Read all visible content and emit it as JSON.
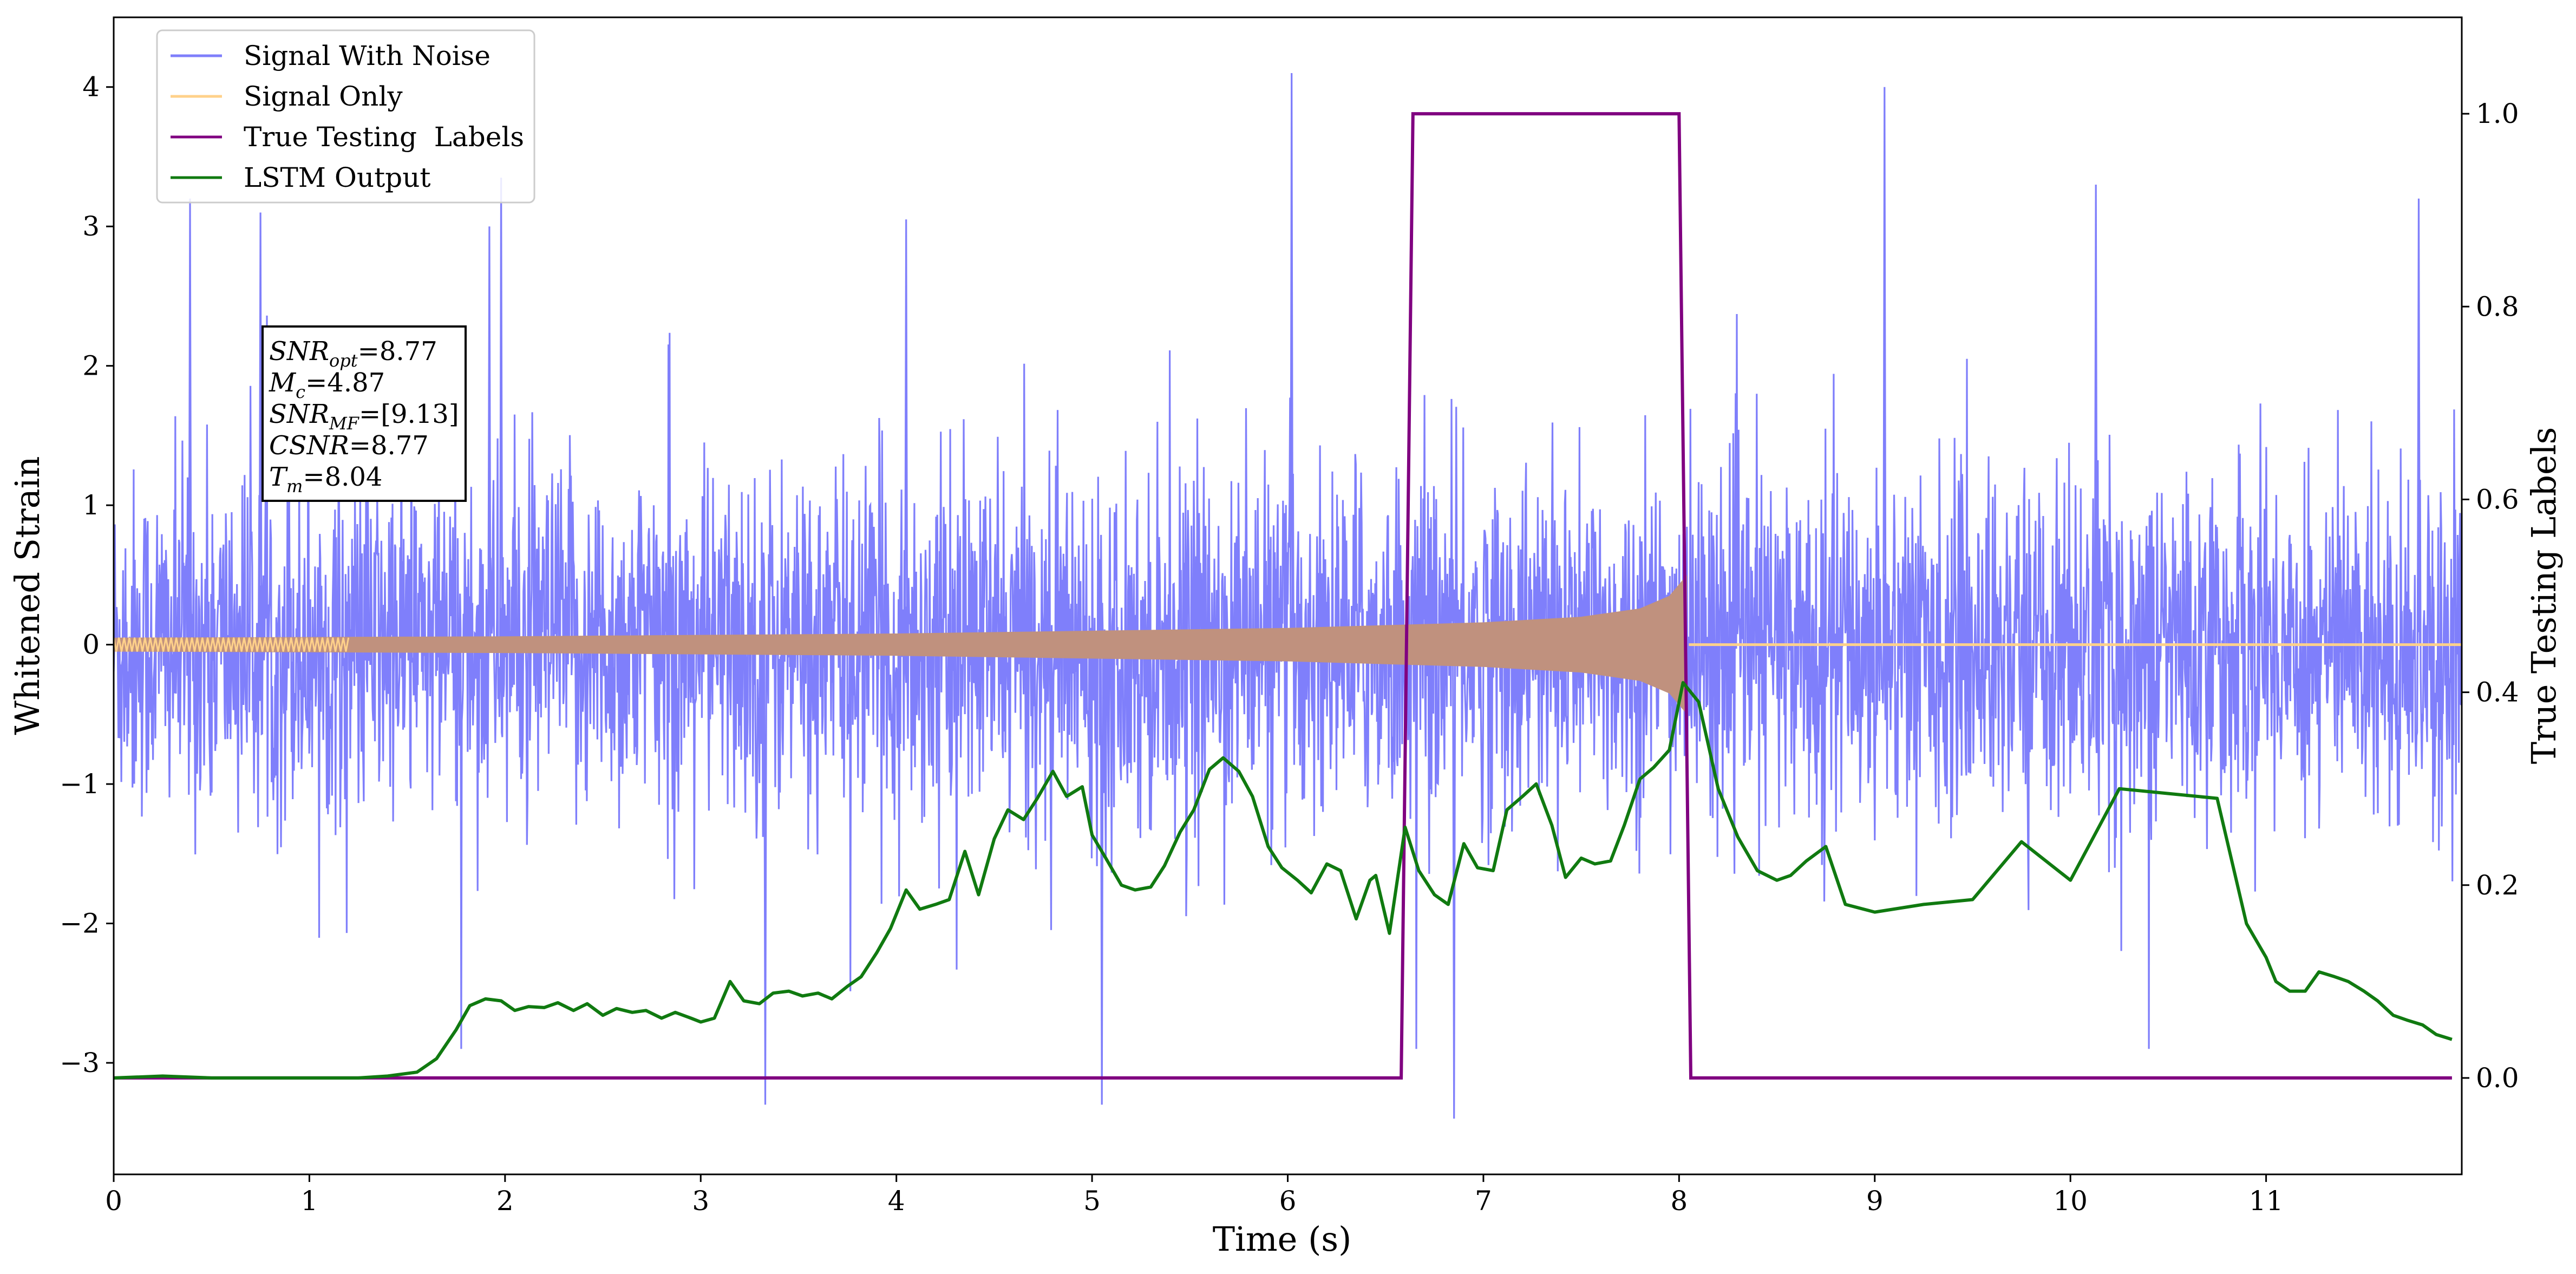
{
  "chart_data": {
    "type": "line",
    "xlabel": "Time (s)",
    "ylabel": "Whitened Strain",
    "y2label": "True Testing Labels",
    "xlim": [
      0,
      12
    ],
    "ylim": [
      -3.8,
      4.5
    ],
    "y2lim": [
      -0.1,
      1.1
    ],
    "xticks": [
      "0",
      "1",
      "2",
      "3",
      "4",
      "5",
      "6",
      "7",
      "8",
      "9",
      "10",
      "11"
    ],
    "yticks": [
      "−3",
      "−2",
      "−1",
      "0",
      "1",
      "2",
      "3",
      "4"
    ],
    "y2ticks": [
      "0.0",
      "0.2",
      "0.4",
      "0.6",
      "0.8",
      "1.0"
    ],
    "legend": {
      "position": "upper-left",
      "entries": [
        {
          "label": "Signal With Noise",
          "color": "#7f7ffb"
        },
        {
          "label": "Signal Only",
          "color": "#ffd18a"
        },
        {
          "label": "True Testing  Labels",
          "color": "#800080"
        },
        {
          "label": "LSTM Output",
          "color": "#107a10"
        }
      ]
    },
    "annotation": {
      "snr_opt": "=8.77",
      "mc": "=4.87",
      "snr_mf": "=[9.13]",
      "csnr": "=8.77",
      "tm": "=8.04"
    },
    "series": [
      {
        "name": "Signal With Noise",
        "axis": "left",
        "color": "#7f7ffb",
        "envelope_typical": [
          -1.3,
          1.3
        ],
        "extremes": [
          {
            "x": 0.39,
            "y": 3.2
          },
          {
            "x": 0.75,
            "y": 3.1
          },
          {
            "x": 1.92,
            "y": 3.0
          },
          {
            "x": 1.98,
            "y": 3.35
          },
          {
            "x": 3.33,
            "y": -3.3
          },
          {
            "x": 4.05,
            "y": 3.05
          },
          {
            "x": 5.05,
            "y": -3.3
          },
          {
            "x": 6.02,
            "y": 4.1
          },
          {
            "x": 6.85,
            "y": -3.4
          },
          {
            "x": 9.05,
            "y": 4.0
          },
          {
            "x": 10.13,
            "y": 3.3
          },
          {
            "x": 11.78,
            "y": 3.2
          }
        ]
      },
      {
        "name": "Signal Only",
        "axis": "left",
        "color": "#ffd18a",
        "envelope": [
          {
            "x": 0.0,
            "y": 0.05
          },
          {
            "x": 1.0,
            "y": 0.055
          },
          {
            "x": 2.0,
            "y": 0.06
          },
          {
            "x": 3.0,
            "y": 0.07
          },
          {
            "x": 4.0,
            "y": 0.08
          },
          {
            "x": 5.0,
            "y": 0.1
          },
          {
            "x": 6.0,
            "y": 0.12
          },
          {
            "x": 6.5,
            "y": 0.14
          },
          {
            "x": 7.0,
            "y": 0.16
          },
          {
            "x": 7.5,
            "y": 0.2
          },
          {
            "x": 7.8,
            "y": 0.26
          },
          {
            "x": 7.95,
            "y": 0.35
          },
          {
            "x": 8.04,
            "y": 0.5
          },
          {
            "x": 8.05,
            "y": 0.0
          },
          {
            "x": 12.0,
            "y": 0.0
          }
        ]
      },
      {
        "name": "True Testing  Labels",
        "axis": "right",
        "color": "#800080",
        "x": [
          0.0,
          6.58,
          6.64,
          8.0,
          8.06,
          11.95
        ],
        "y": [
          0,
          0,
          1,
          1,
          0,
          0
        ]
      },
      {
        "name": "LSTM Output",
        "axis": "right",
        "color": "#107a10",
        "x": [
          0.0,
          0.25,
          0.5,
          0.75,
          1.0,
          1.25,
          1.4,
          1.55,
          1.65,
          1.75,
          1.82,
          1.9,
          1.98,
          2.05,
          2.12,
          2.2,
          2.27,
          2.35,
          2.42,
          2.5,
          2.57,
          2.65,
          2.72,
          2.8,
          2.87,
          2.95,
          3.0,
          3.07,
          3.15,
          3.22,
          3.3,
          3.37,
          3.45,
          3.52,
          3.6,
          3.67,
          3.75,
          3.82,
          3.9,
          3.97,
          4.05,
          4.12,
          4.2,
          4.27,
          4.35,
          4.42,
          4.5,
          4.57,
          4.65,
          4.72,
          4.8,
          4.87,
          4.95,
          5.0,
          5.07,
          5.15,
          5.22,
          5.3,
          5.37,
          5.45,
          5.52,
          5.6,
          5.67,
          5.75,
          5.82,
          5.9,
          5.97,
          6.05,
          6.12,
          6.2,
          6.27,
          6.35,
          6.42,
          6.45,
          6.52,
          6.6,
          6.67,
          6.75,
          6.82,
          6.9,
          6.97,
          7.05,
          7.12,
          7.2,
          7.27,
          7.35,
          7.42,
          7.5,
          7.57,
          7.65,
          7.72,
          7.8,
          7.87,
          7.95,
          8.02,
          8.1,
          8.2,
          8.3,
          8.4,
          8.5,
          8.57,
          8.65,
          8.75,
          8.85,
          9.0,
          9.25,
          9.5,
          9.75,
          10.0,
          10.25,
          10.5,
          10.75,
          10.9,
          11.0,
          11.05,
          11.12,
          11.2,
          11.27,
          11.35,
          11.42,
          11.5,
          11.57,
          11.65,
          11.72,
          11.8,
          11.87,
          11.95
        ],
        "y": [
          0.0,
          0.002,
          0.0,
          0.0,
          0.0,
          0.0,
          0.002,
          0.006,
          0.02,
          0.05,
          0.075,
          0.082,
          0.08,
          0.07,
          0.074,
          0.073,
          0.078,
          0.07,
          0.077,
          0.065,
          0.072,
          0.068,
          0.07,
          0.062,
          0.068,
          0.062,
          0.058,
          0.062,
          0.1,
          0.08,
          0.077,
          0.088,
          0.09,
          0.085,
          0.088,
          0.082,
          0.095,
          0.105,
          0.13,
          0.155,
          0.195,
          0.175,
          0.18,
          0.185,
          0.235,
          0.19,
          0.248,
          0.278,
          0.268,
          0.29,
          0.318,
          0.292,
          0.302,
          0.252,
          0.228,
          0.2,
          0.195,
          0.198,
          0.22,
          0.255,
          0.278,
          0.32,
          0.332,
          0.318,
          0.292,
          0.24,
          0.218,
          0.205,
          0.192,
          0.222,
          0.215,
          0.165,
          0.205,
          0.21,
          0.15,
          0.26,
          0.215,
          0.19,
          0.18,
          0.243,
          0.218,
          0.215,
          0.278,
          0.292,
          0.305,
          0.262,
          0.208,
          0.228,
          0.222,
          0.225,
          0.262,
          0.31,
          0.322,
          0.34,
          0.41,
          0.39,
          0.3,
          0.25,
          0.215,
          0.205,
          0.21,
          0.225,
          0.24,
          0.18,
          0.172,
          0.18,
          0.185,
          0.245,
          0.205,
          0.3,
          0.295,
          0.29,
          0.16,
          0.125,
          0.1,
          0.09,
          0.09,
          0.11,
          0.105,
          0.1,
          0.09,
          0.08,
          0.065,
          0.06,
          0.055,
          0.045,
          0.04
        ]
      }
    ]
  }
}
